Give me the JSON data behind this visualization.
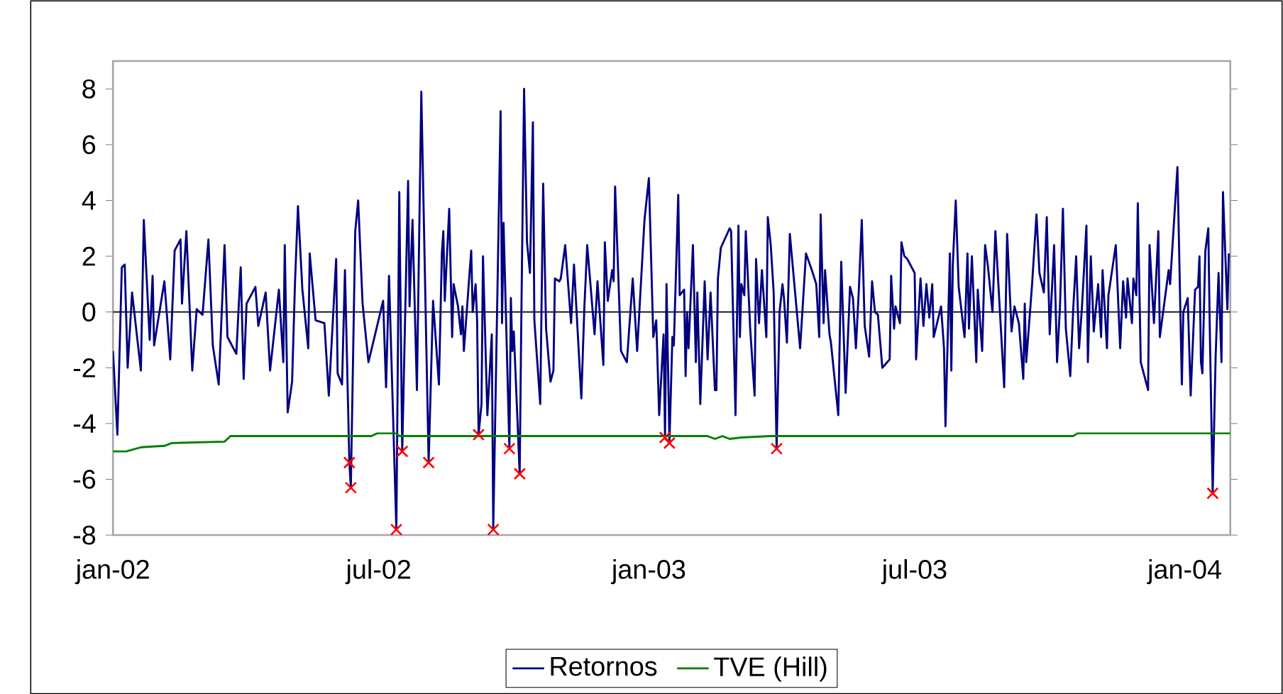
{
  "chart_data": {
    "type": "line",
    "xlim": [
      "2002-01-01",
      "2004-02-01"
    ],
    "ylim": [
      -8,
      9
    ],
    "yticks": [
      -8,
      -6,
      -4,
      -2,
      0,
      2,
      4,
      6,
      8
    ],
    "xticks": [
      {
        "value": "2002-01-01",
        "label": "jan-02"
      },
      {
        "value": "2002-07-01",
        "label": "jul-02"
      },
      {
        "value": "2003-01-01",
        "label": "jan-03"
      },
      {
        "value": "2003-07-01",
        "label": "jul-03"
      },
      {
        "value": "2004-01-01",
        "label": "jan-04"
      }
    ],
    "grid": false,
    "legend": "bottom",
    "ref_lines": [
      {
        "axis": "y",
        "value": 0,
        "color": "#000000"
      }
    ],
    "series": [
      {
        "name": "Retornos",
        "color": "#000080",
        "marker": "none",
        "x": [
          "2002-01-01",
          "2002-01-04",
          "2002-01-07",
          "2002-01-09",
          "2002-01-11",
          "2002-01-14",
          "2002-01-20",
          "2002-01-22",
          "2002-01-26",
          "2002-01-28",
          "2002-01-29",
          "2002-02-05",
          "2002-02-09",
          "2002-02-12",
          "2002-02-16",
          "2002-02-17",
          "2002-02-20",
          "2002-02-24",
          "2002-02-27",
          "2002-03-03",
          "2002-03-07",
          "2002-03-10",
          "2002-03-14",
          "2002-03-18",
          "2002-03-20",
          "2002-03-26",
          "2002-03-29",
          "2002-03-31",
          "2002-04-02",
          "2002-04-08",
          "2002-04-10",
          "2002-04-15",
          "2002-04-18",
          "2002-04-24",
          "2002-04-27",
          "2002-04-28",
          "2002-04-30",
          "2002-05-03",
          "2002-05-05",
          "2002-05-07",
          "2002-05-10",
          "2002-05-14",
          "2002-05-15",
          "2002-05-19",
          "2002-05-25",
          "2002-05-28",
          "2002-06-02",
          "2002-06-03",
          "2002-06-06",
          "2002-06-08",
          "2002-06-11",
          "2002-06-12",
          "2002-06-15",
          "2002-06-17",
          "2002-06-20",
          "2002-06-24",
          "2002-07-04",
          "2002-07-06",
          "2002-07-08",
          "2002-07-13",
          "2002-07-15",
          "2002-07-17",
          "2002-07-21",
          "2002-07-22",
          "2002-07-24",
          "2002-07-27",
          "2002-07-30",
          "2002-08-02",
          "2002-08-04",
          "2002-08-07",
          "2002-08-11",
          "2002-08-13",
          "2002-08-14",
          "2002-08-15",
          "2002-08-18",
          "2002-08-20",
          "2002-08-21",
          "2002-08-24",
          "2002-08-26",
          "2002-08-27",
          "2002-08-28",
          "2002-09-01",
          "2002-09-02",
          "2002-09-03",
          "2002-09-05",
          "2002-09-06",
          "2002-09-07",
          "2002-09-09",
          "2002-09-10",
          "2002-09-13",
          "2002-09-16",
          "2002-09-17",
          "2002-09-22",
          "2002-09-23",
          "2002-09-24",
          "2002-09-28",
          "2002-09-29",
          "2002-09-30",
          "2002-10-01",
          "2002-10-05",
          "2002-10-06",
          "2002-10-08",
          "2002-10-10",
          "2002-10-12",
          "2002-10-14",
          "2002-10-15",
          "2002-10-19",
          "2002-10-21",
          "2002-10-23",
          "2002-10-26",
          "2002-10-28",
          "2002-10-29",
          "2002-11-01",
          "2002-11-02",
          "2002-11-05",
          "2002-11-09",
          "2002-11-11",
          "2002-11-16",
          "2002-11-18",
          "2002-11-20",
          "2002-11-25",
          "2002-11-27",
          "2002-12-01",
          "2002-12-02",
          "2002-12-04",
          "2002-12-07",
          "2002-12-08",
          "2002-12-09",
          "2002-12-13",
          "2002-12-17",
          "2002-12-21",
          "2002-12-24",
          "2002-12-29",
          "2003-01-01",
          "2003-01-04",
          "2003-01-06",
          "2003-01-08",
          "2003-01-11",
          "2003-01-12",
          "2003-01-13",
          "2003-01-15",
          "2003-01-17",
          "2003-01-18",
          "2003-01-21",
          "2003-01-22",
          "2003-01-25",
          "2003-01-26",
          "2003-01-27",
          "2003-01-28",
          "2003-01-31",
          "2003-02-02",
          "2003-02-03",
          "2003-02-05",
          "2003-02-08",
          "2003-02-10",
          "2003-02-12",
          "2003-02-15",
          "2003-02-16",
          "2003-02-17",
          "2003-02-19",
          "2003-02-25",
          "2003-02-26",
          "2003-03-01",
          "2003-03-03",
          "2003-03-04",
          "2003-03-05",
          "2003-03-07",
          "2003-03-08",
          "2003-03-11",
          "2003-03-14",
          "2003-03-15",
          "2003-03-17",
          "2003-03-19",
          "2003-03-22",
          "2003-03-23",
          "2003-03-25",
          "2003-03-27",
          "2003-03-29",
          "2003-03-31",
          "2003-04-02",
          "2003-04-03",
          "2003-04-05",
          "2003-04-07",
          "2003-04-14",
          "2003-04-18",
          "2003-04-22",
          "2003-04-25",
          "2003-04-27",
          "2003-04-28",
          "2003-04-30",
          "2003-05-01",
          "2003-05-04",
          "2003-05-05",
          "2003-05-10",
          "2003-05-12",
          "2003-05-15",
          "2003-05-18",
          "2003-05-20",
          "2003-05-22",
          "2003-05-24",
          "2003-05-26",
          "2003-05-28",
          "2003-05-31",
          "2003-06-02",
          "2003-06-04",
          "2003-06-06",
          "2003-06-09",
          "2003-06-14",
          "2003-06-15",
          "2003-06-17",
          "2003-06-18",
          "2003-06-21",
          "2003-06-22",
          "2003-06-24",
          "2003-06-26",
          "2003-07-01",
          "2003-07-02",
          "2003-07-05",
          "2003-07-07",
          "2003-07-09",
          "2003-07-11",
          "2003-07-13",
          "2003-07-14",
          "2003-07-19",
          "2003-07-21",
          "2003-07-22",
          "2003-07-25",
          "2003-07-26",
          "2003-07-27",
          "2003-07-29",
          "2003-07-31",
          "2003-08-04",
          "2003-08-06",
          "2003-08-07",
          "2003-08-09",
          "2003-08-12",
          "2003-08-13",
          "2003-08-16",
          "2003-08-18",
          "2003-08-20",
          "2003-08-23",
          "2003-08-25",
          "2003-08-31",
          "2003-09-02",
          "2003-09-05",
          "2003-09-07",
          "2003-09-10",
          "2003-09-13",
          "2003-09-14",
          "2003-09-15",
          "2003-09-19",
          "2003-09-22",
          "2003-09-24",
          "2003-09-27",
          "2003-09-29",
          "2003-10-01",
          "2003-10-04",
          "2003-10-06",
          "2003-10-08",
          "2003-10-10",
          "2003-10-12",
          "2003-10-15",
          "2003-10-17",
          "2003-10-19",
          "2003-10-21",
          "2003-10-23",
          "2003-10-26",
          "2003-10-27",
          "2003-10-29",
          "2003-10-31",
          "2003-11-03",
          "2003-11-05",
          "2003-11-06",
          "2003-11-09",
          "2003-11-10",
          "2003-11-15",
          "2003-11-18",
          "2003-11-20",
          "2003-11-22",
          "2003-11-23",
          "2003-11-26",
          "2003-11-27",
          "2003-11-29",
          "2003-11-30",
          "2003-12-02",
          "2003-12-07",
          "2003-12-08",
          "2003-12-11",
          "2003-12-14",
          "2003-12-15",
          "2003-12-21",
          "2003-12-22",
          "2003-12-27",
          "2003-12-30",
          "2003-12-31",
          "2004-01-03",
          "2004-01-05",
          "2004-01-08",
          "2004-01-10",
          "2004-01-11",
          "2004-01-12",
          "2004-01-13",
          "2004-01-15",
          "2004-01-17",
          "2004-01-18",
          "2004-01-20",
          "2004-01-22",
          "2004-01-24",
          "2004-01-26",
          "2004-01-27",
          "2004-01-30",
          "2004-01-31"
        ],
        "values": [
          -1.4,
          -4.4,
          1.6,
          1.7,
          -2.0,
          0.7,
          -2.1,
          3.3,
          -1.0,
          1.3,
          -1.2,
          1.1,
          -1.7,
          2.2,
          2.6,
          0.3,
          2.9,
          -2.1,
          0.1,
          -0.1,
          2.6,
          -1.2,
          -2.6,
          2.4,
          -0.9,
          -1.5,
          1.6,
          -2.4,
          0.3,
          0.9,
          -0.5,
          0.7,
          -2.1,
          0.8,
          -1.8,
          2.4,
          -3.6,
          -2.5,
          1.1,
          3.8,
          0.8,
          -1.3,
          2.1,
          -0.3,
          -0.4,
          -3.0,
          1.9,
          -2.2,
          -2.6,
          1.5,
          -5.4,
          -6.3,
          2.9,
          4.0,
          0.3,
          -1.8,
          0.4,
          -2.7,
          1.3,
          -7.8,
          4.3,
          -5.0,
          4.7,
          0.2,
          3.3,
          -2.8,
          7.9,
          -0.1,
          -5.4,
          0.4,
          -2.6,
          2.1,
          2.9,
          0.4,
          3.7,
          -0.9,
          1.0,
          0.2,
          -0.8,
          0.2,
          -1.4,
          1.5,
          2.2,
          0.0,
          1.0,
          -0.3,
          -4.4,
          -3.3,
          2.0,
          -3.7,
          -0.8,
          -7.8,
          7.2,
          -0.4,
          3.2,
          -4.9,
          0.5,
          -1.4,
          -0.7,
          -5.8,
          -0.8,
          8.0,
          2.5,
          1.4,
          6.8,
          -0.3,
          -3.3,
          4.6,
          -0.6,
          -2.5,
          -2.1,
          1.2,
          1.1,
          1.2,
          2.4,
          -0.4,
          1.7,
          -3.1,
          0.1,
          2.4,
          -0.8,
          1.1,
          -1.9,
          2.5,
          0.4,
          1.5,
          1.1,
          4.5,
          -1.4,
          -1.8,
          1.2,
          -1.4,
          3.3,
          4.8,
          -0.9,
          -0.3,
          -3.7,
          -0.8,
          -4.5,
          1.0,
          -4.7,
          -0.9,
          -1.2,
          4.2,
          0.6,
          0.8,
          -2.3,
          0.0,
          -1.3,
          2.4,
          -1.8,
          0.7,
          -3.3,
          1.1,
          -1.7,
          0.7,
          -2.8,
          -2.8,
          1.2,
          2.3,
          3.0,
          2.9,
          -3.7,
          3.1,
          -0.9,
          1.0,
          0.6,
          2.9,
          -0.6,
          -3.0,
          1.9,
          -0.4,
          1.5,
          -0.9,
          3.4,
          2.4,
          0.7,
          -4.9,
          0.0,
          1.0,
          0.5,
          -1.1,
          2.8,
          -1.3,
          2.1,
          1.5,
          1.0,
          -0.9,
          3.5,
          -0.4,
          1.5,
          -0.8,
          -1.1,
          -3.7,
          1.8,
          -2.9,
          0.9,
          0.5,
          -1.3,
          0.8,
          3.3,
          -0.5,
          -1.6,
          1.1,
          0.0,
          -0.1,
          -2.0,
          -1.7,
          1.3,
          -0.6,
          0.2,
          -0.4,
          2.5,
          2.0,
          1.9,
          1.4,
          -1.7,
          1.2,
          -0.5,
          1.0,
          -0.2,
          1.0,
          -0.9,
          0.2,
          -1.3,
          -4.1,
          2.1,
          -2.1,
          1.7,
          4.0,
          0.9,
          -0.9,
          2.1,
          -0.6,
          2.0,
          -1.8,
          0.8,
          -1.4,
          2.4,
          1.6,
          0.0,
          2.9,
          -2.7,
          2.8,
          -0.7,
          0.2,
          -0.4,
          -2.4,
          0.3,
          -1.8,
          1.0,
          3.5,
          1.4,
          0.7,
          3.4,
          -0.8,
          2.4,
          -1.8,
          0.2,
          3.7,
          -0.6,
          -2.3,
          0.1,
          2.0,
          -1.3,
          0.2,
          3.1,
          -1.8,
          2.0,
          -0.7,
          1.0,
          -0.9,
          1.5,
          -1.3,
          0.6,
          2.4,
          -1.3,
          1.1,
          -0.2,
          1.2,
          -0.4,
          1.2,
          0.6,
          3.9,
          -1.8,
          -2.8,
          2.4,
          -0.4,
          2.9,
          -0.9,
          1.5,
          1.0,
          5.2,
          -2.6,
          0.0,
          0.5,
          -3.0,
          0.8,
          0.9,
          2.0,
          -1.8,
          -2.2,
          2.2,
          3.0,
          -0.5,
          -6.5,
          -1.6,
          1.4,
          -1.8,
          4.3,
          0.1,
          2.1
        ]
      },
      {
        "name": "TVE (Hill)",
        "color": "#008000",
        "marker": "none",
        "x": [
          "2002-01-01",
          "2002-01-10",
          "2002-01-20",
          "2002-02-05",
          "2002-02-10",
          "2002-03-18",
          "2002-03-22",
          "2002-06-26",
          "2002-06-30",
          "2002-07-13",
          "2002-07-15",
          "2002-12-31",
          "2003-02-10",
          "2003-02-15",
          "2003-02-20",
          "2003-02-25",
          "2003-03-05",
          "2003-03-25",
          "2003-10-17",
          "2003-10-20",
          "2004-02-01"
        ],
        "values": [
          -5.0,
          -5.0,
          -4.85,
          -4.8,
          -4.7,
          -4.65,
          -4.45,
          -4.45,
          -4.35,
          -4.35,
          -4.45,
          -4.45,
          -4.45,
          -4.55,
          -4.45,
          -4.55,
          -4.5,
          -4.45,
          -4.45,
          -4.35,
          -4.35
        ]
      },
      {
        "type": "scatter",
        "color": "#ff0000",
        "marker": "cross",
        "x": [
          "2002-06-11",
          "2002-06-12",
          "2002-07-13",
          "2002-07-17",
          "2002-08-04",
          "2002-09-07",
          "2002-09-17",
          "2002-09-28",
          "2002-10-05",
          "2003-01-12",
          "2003-01-15",
          "2003-03-29",
          "2004-01-20"
        ],
        "values": [
          -5.4,
          -6.3,
          -7.8,
          -5.0,
          -5.4,
          -4.4,
          -7.8,
          -4.9,
          -5.8,
          -4.5,
          -4.7,
          -4.9,
          -6.5
        ]
      }
    ]
  }
}
